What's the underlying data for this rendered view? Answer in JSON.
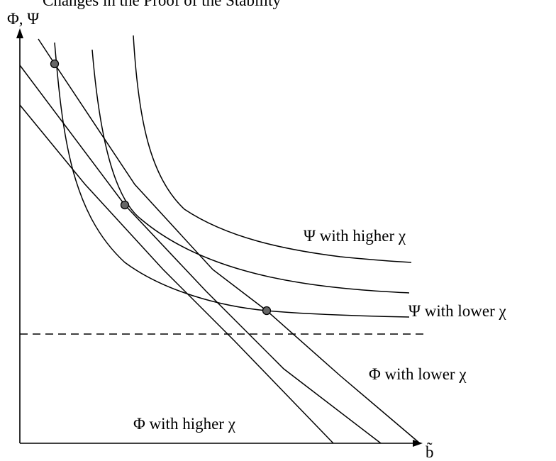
{
  "header_fragment": "Changes in the Proof of the Stability",
  "axes": {
    "y_label": "Φ, Ψ",
    "x_label": "b̃"
  },
  "curve_labels": {
    "psi_higher": "Ψ with higher χ",
    "psi_lower": "Ψ with lower χ",
    "phi_lower": "Φ with lower χ",
    "phi_higher": "Φ with higher χ"
  },
  "marker_color": "#666666"
}
